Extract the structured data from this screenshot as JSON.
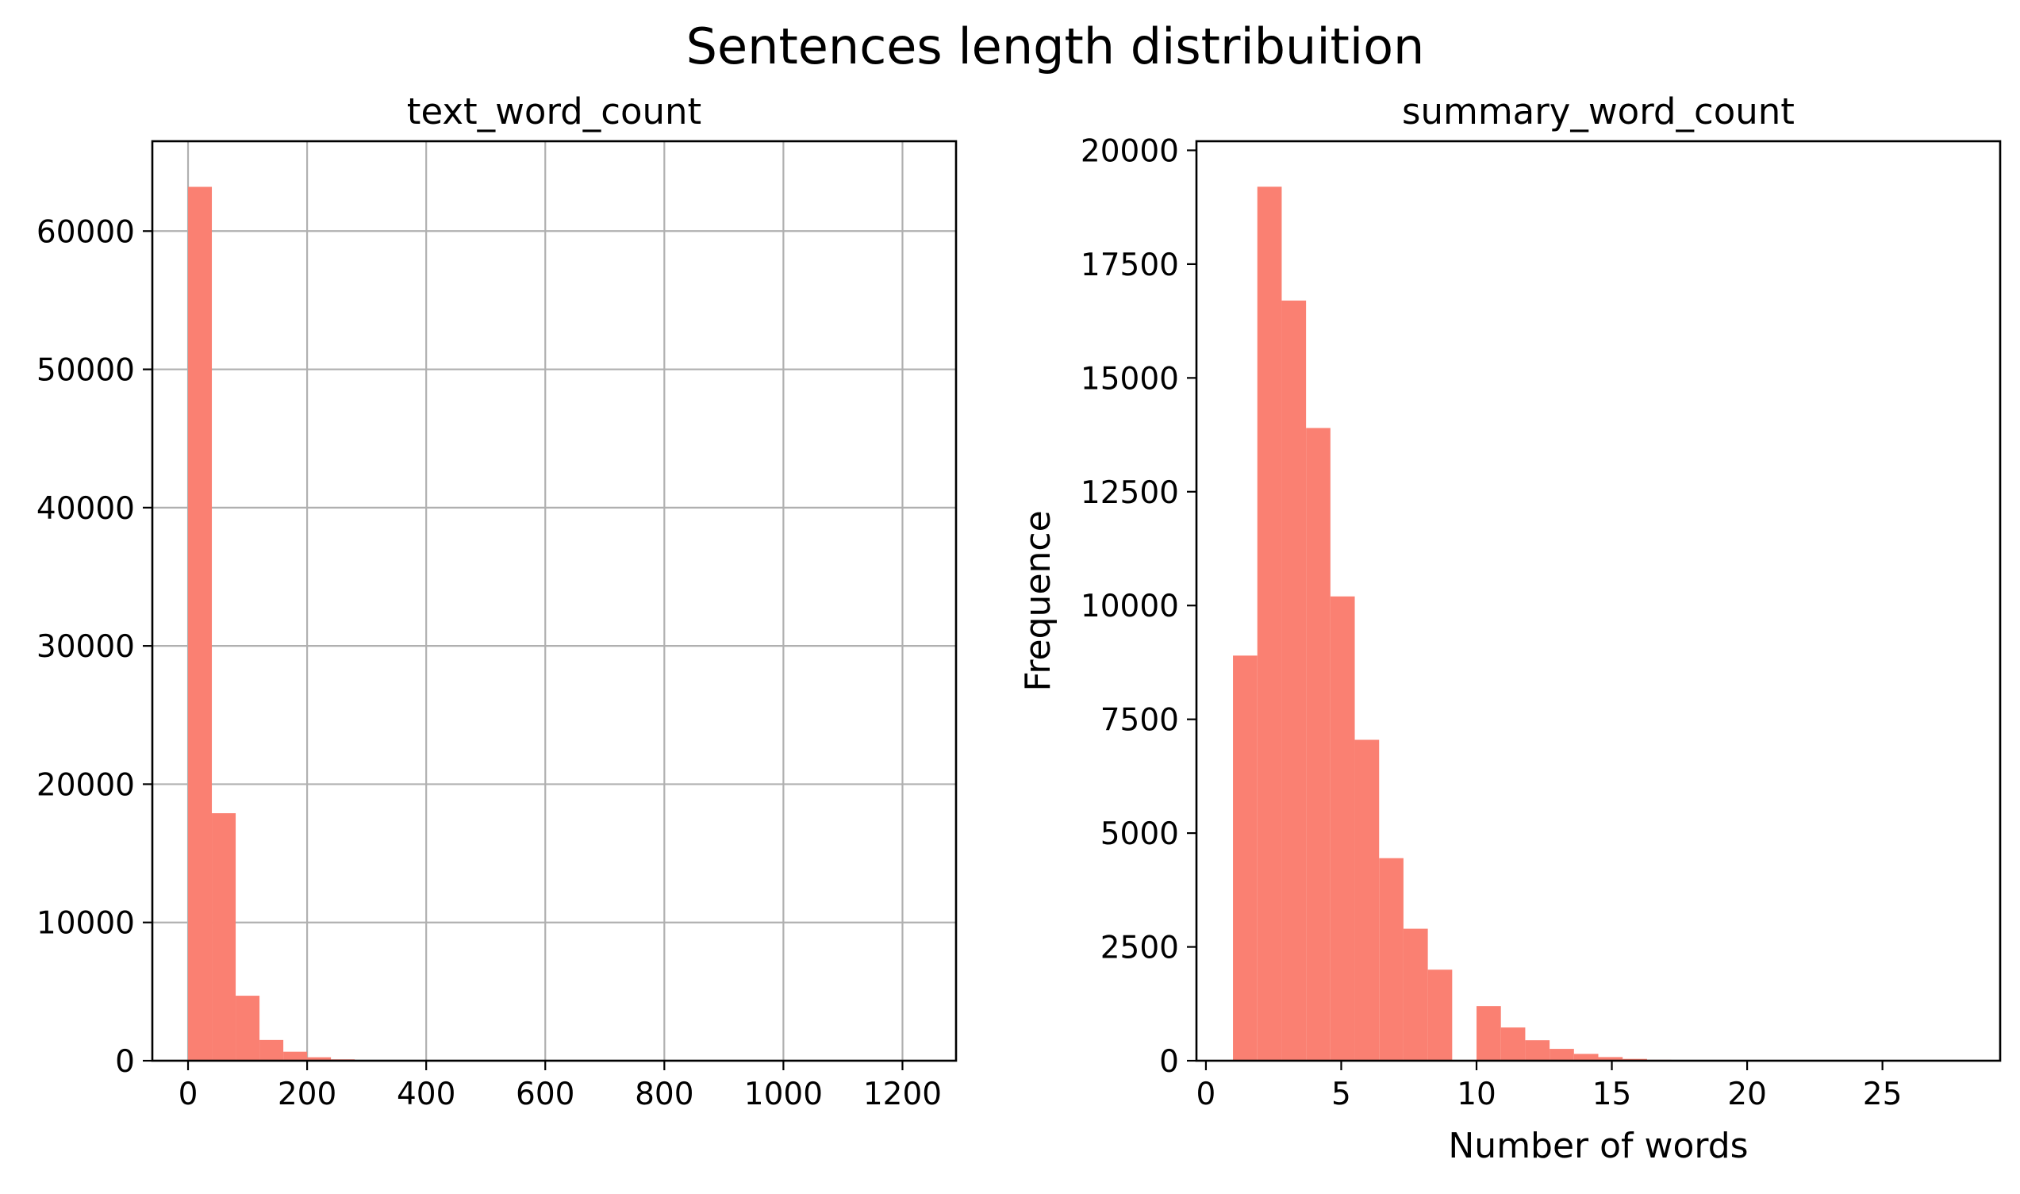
{
  "figure": {
    "title": "Sentences length distribuition"
  },
  "chart_data": [
    {
      "type": "bar",
      "title": "text_word_count",
      "xlabel": "",
      "ylabel": "",
      "grid": true,
      "color": "#fa8072",
      "xlim": [
        -60,
        1290
      ],
      "ylim": [
        0,
        66500
      ],
      "xticks": [
        0,
        200,
        400,
        600,
        800,
        1000,
        1200
      ],
      "xtick_labels": [
        "0",
        "200",
        "400",
        "600",
        "800",
        "1000",
        "1200"
      ],
      "yticks": [
        0,
        10000,
        20000,
        30000,
        40000,
        50000,
        60000
      ],
      "ytick_labels": [
        "0",
        "10000",
        "20000",
        "30000",
        "40000",
        "50000",
        "60000"
      ],
      "bin_edges": [
        0,
        40,
        80,
        120,
        160,
        200,
        240,
        280,
        320,
        360,
        400,
        440,
        480,
        520,
        560,
        600,
        640,
        680,
        720,
        760,
        800,
        840,
        880,
        920,
        960,
        1000,
        1040,
        1080,
        1120,
        1160,
        1200,
        1240
      ],
      "values": [
        63200,
        17900,
        4700,
        1500,
        650,
        250,
        100,
        50,
        25,
        12,
        8,
        5,
        3,
        2,
        2,
        1,
        1,
        1,
        1,
        1,
        1,
        1,
        1,
        1,
        1,
        1,
        1,
        1,
        1,
        1,
        1
      ]
    },
    {
      "type": "bar",
      "title": "summary_word_count",
      "xlabel": "Number of words",
      "ylabel": "Frequence",
      "grid": false,
      "color": "#fa8072",
      "xlim": [
        -0.35,
        29.35
      ],
      "ylim": [
        0,
        20200
      ],
      "xticks": [
        0,
        5,
        10,
        15,
        20,
        25
      ],
      "xtick_labels": [
        "0",
        "5",
        "10",
        "15",
        "20",
        "25"
      ],
      "yticks": [
        0,
        2500,
        5000,
        7500,
        10000,
        12500,
        15000,
        17500,
        20000
      ],
      "ytick_labels": [
        "0",
        "2500",
        "5000",
        "7500",
        "10000",
        "12500",
        "15000",
        "17500",
        "20000"
      ],
      "bin_edges": [
        1,
        1.9,
        2.8,
        3.7,
        4.6,
        5.5,
        6.4,
        7.3,
        8.2,
        9.1,
        10.0,
        10.9,
        11.8,
        12.7,
        13.6,
        14.5,
        15.4,
        16.3,
        17.2,
        18.1,
        19.0,
        19.9,
        20.8,
        21.7,
        22.6,
        23.5,
        24.4,
        25.3,
        26.2,
        27.1,
        28.0
      ],
      "values": [
        8900,
        19200,
        16700,
        13900,
        10200,
        7050,
        4450,
        2900,
        2000,
        0,
        1200,
        730,
        450,
        260,
        150,
        80,
        40,
        20,
        12,
        8,
        5,
        3,
        2,
        1,
        1,
        1,
        1,
        1,
        1,
        1
      ]
    }
  ]
}
